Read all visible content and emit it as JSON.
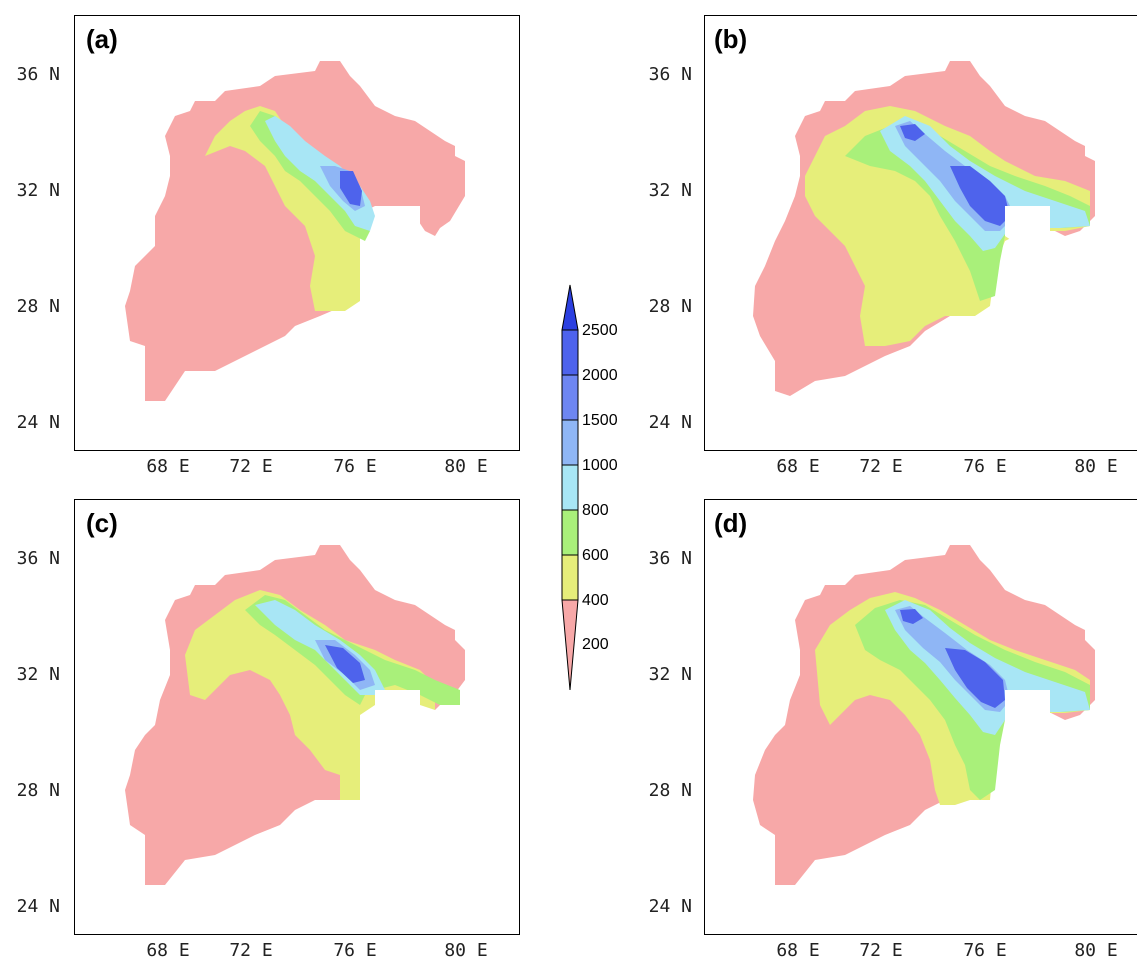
{
  "panels": [
    {
      "id": "a",
      "label": "(a)"
    },
    {
      "id": "b",
      "label": "(b)"
    },
    {
      "id": "c",
      "label": "(c)"
    },
    {
      "id": "d",
      "label": "(d)"
    }
  ],
  "axes": {
    "lat_labels": [
      "36 N",
      "32 N",
      "28 N",
      "24 N"
    ],
    "lon_labels": [
      "68 E",
      "72 E",
      "76 E",
      "80 E"
    ]
  },
  "colorbar": {
    "levels": [
      "2500",
      "2000",
      "1500",
      "1000",
      "800",
      "600",
      "400",
      "200"
    ],
    "colors": [
      "#2b3fe0",
      "#4e63ec",
      "#6e86f2",
      "#8fb6f5",
      "#a8e6f5",
      "#a9f07a",
      "#e6ee7a",
      "#f7a8a8"
    ]
  },
  "colors": {
    "c200": "#f7a8a8",
    "c400": "#e6ee7a",
    "c600": "#a9f07a",
    "c800": "#a8e6f5",
    "c1000": "#8fb6f5",
    "c1500": "#6e86f2",
    "c2000": "#4e63ec",
    "c2500": "#2b3fe0"
  }
}
